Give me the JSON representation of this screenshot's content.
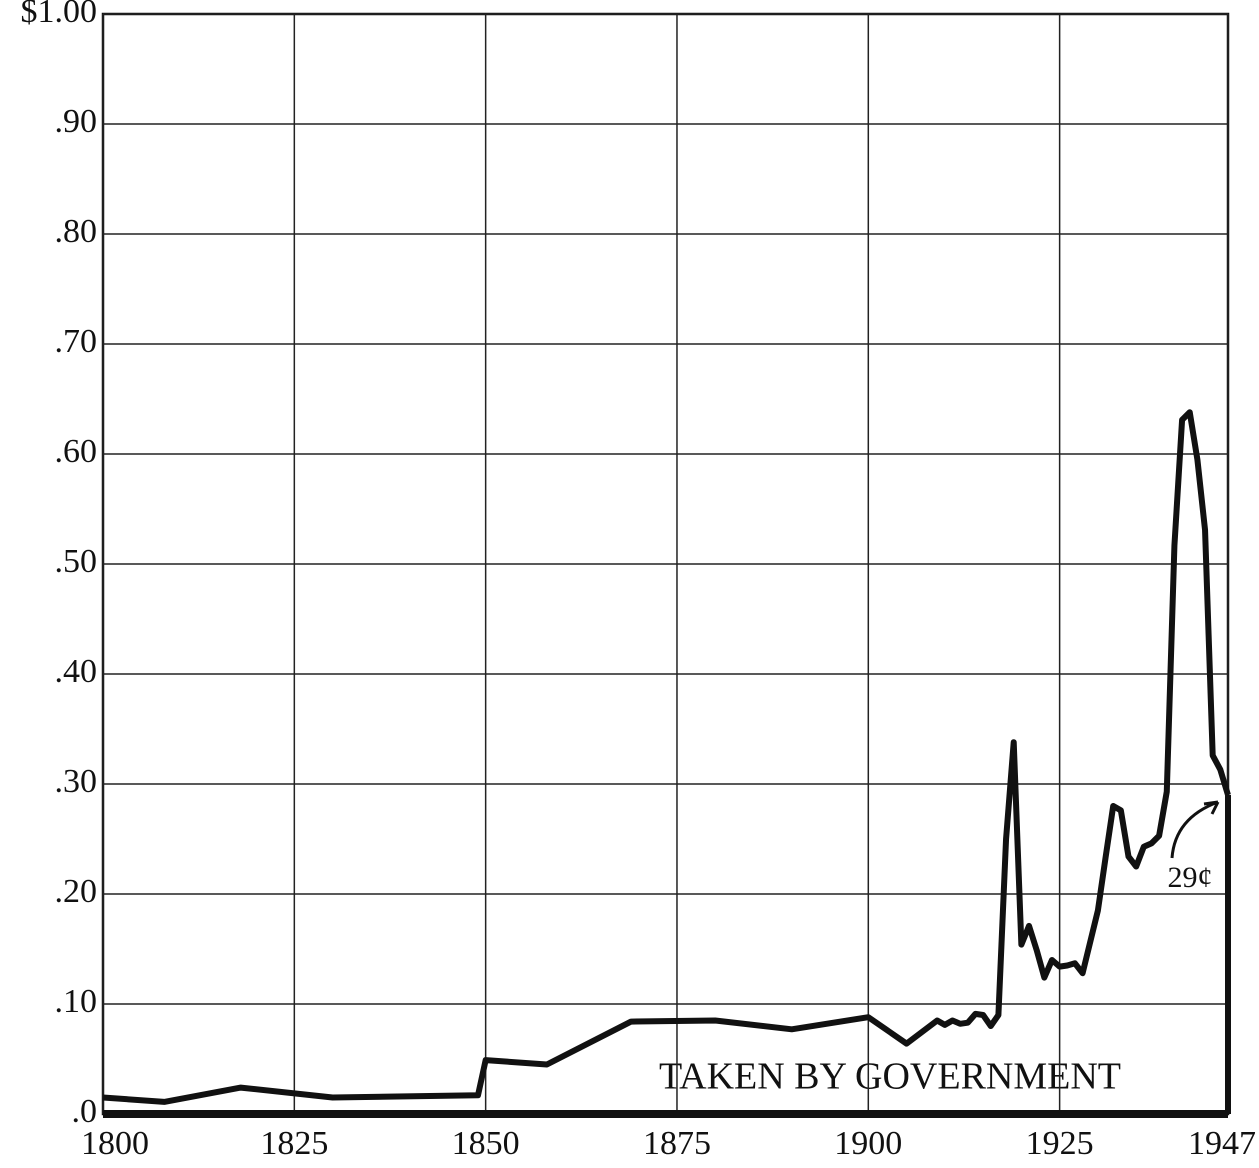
{
  "chart_data": {
    "type": "line",
    "x": [
      1800,
      1808,
      1818,
      1830,
      1849,
      1850,
      1858,
      1869,
      1880,
      1890,
      1900,
      1905,
      1909,
      1910,
      1911,
      1912,
      1913,
      1914,
      1915,
      1916,
      1917,
      1918,
      1919,
      1920,
      1921,
      1922,
      1923,
      1924,
      1925,
      1926,
      1927,
      1928,
      1930,
      1931,
      1932,
      1933,
      1934,
      1935,
      1936,
      1937,
      1938,
      1939,
      1940,
      1941,
      1942,
      1943,
      1944,
      1945,
      1946,
      1947
    ],
    "series": [
      {
        "color": "#111111",
        "values": [
          0.015,
          0.011,
          0.024,
          0.015,
          0.017,
          0.049,
          0.045,
          0.084,
          0.085,
          0.077,
          0.088,
          0.064,
          0.085,
          0.081,
          0.085,
          0.082,
          0.083,
          0.091,
          0.09,
          0.08,
          0.09,
          0.25,
          0.338,
          0.154,
          0.171,
          0.149,
          0.124,
          0.14,
          0.134,
          0.135,
          0.137,
          0.128,
          0.185,
          0.233,
          0.28,
          0.276,
          0.234,
          0.225,
          0.243,
          0.246,
          0.253,
          0.293,
          0.517,
          0.631,
          0.638,
          0.595,
          0.531,
          0.326,
          0.313,
          0.29
        ]
      }
    ],
    "xlim": [
      1800,
      1947
    ],
    "xticks": [
      1800,
      1825,
      1850,
      1875,
      1900,
      1925,
      1947
    ],
    "ylim": [
      0,
      1
    ],
    "yticks": [
      {
        "value": 0,
        "label": ".0"
      },
      {
        "value": 0.1,
        "label": ".10"
      },
      {
        "value": 0.2,
        "label": ".20"
      },
      {
        "value": 0.3,
        "label": ".30"
      },
      {
        "value": 0.4,
        "label": ".40"
      },
      {
        "value": 0.5,
        "label": ".50"
      },
      {
        "value": 0.6,
        "label": ".60"
      },
      {
        "value": 0.7,
        "label": ".70"
      },
      {
        "value": 0.8,
        "label": ".80"
      },
      {
        "value": 0.9,
        "label": ".90"
      },
      {
        "value": 1,
        "label": "$1.00"
      }
    ],
    "grid": true,
    "annotations": [
      "TAKEN BY GOVERNMENT",
      "29¢"
    ]
  }
}
